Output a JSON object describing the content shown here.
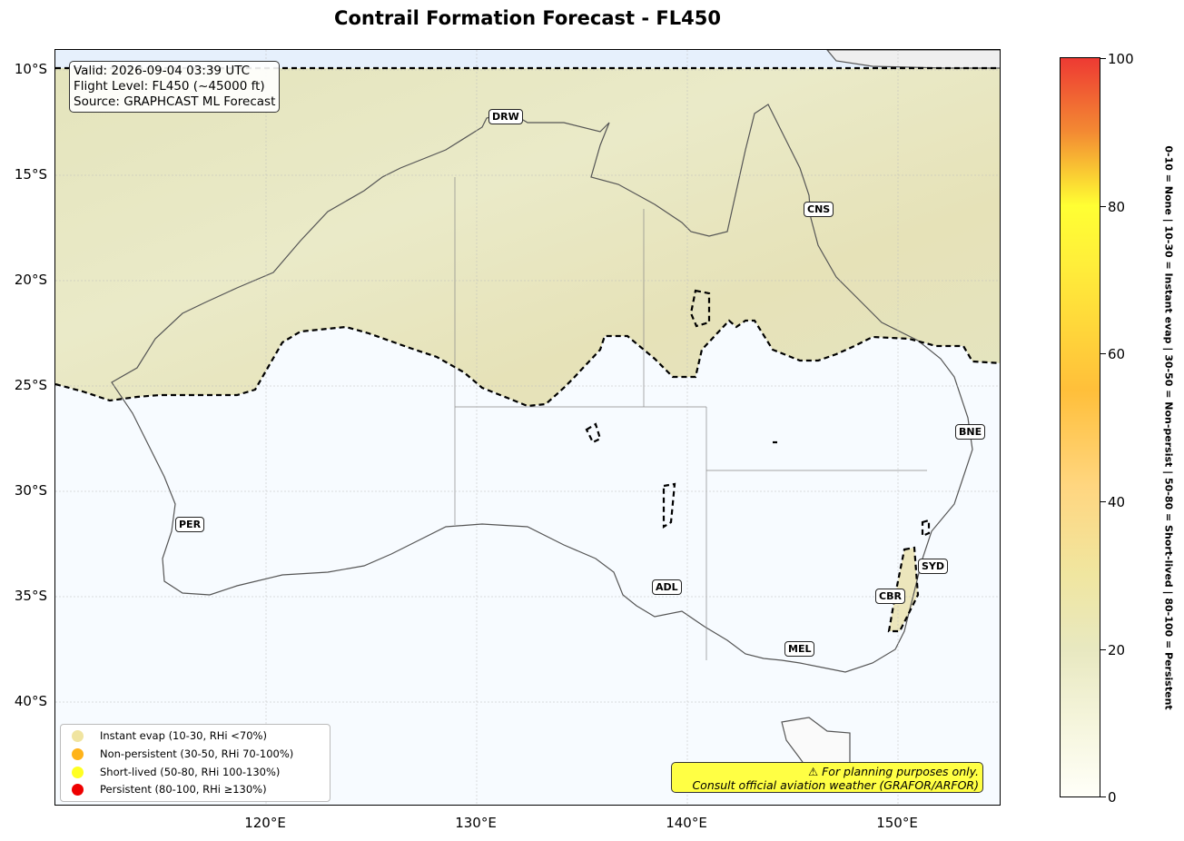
{
  "title": "Contrail Formation Forecast - FL450",
  "info": {
    "valid": "Valid: 2026-09-04 03:39 UTC",
    "flight_level": "Flight Level: FL450 (~45000 ft)",
    "source": "Source: GRAPHCAST ML Forecast"
  },
  "axes": {
    "lat_ticks": [
      "10°S",
      "15°S",
      "20°S",
      "25°S",
      "30°S",
      "35°S",
      "40°S"
    ],
    "lon_ticks": [
      "120°E",
      "130°E",
      "140°E",
      "150°E"
    ]
  },
  "airports": [
    {
      "code": "DRW"
    },
    {
      "code": "CNS"
    },
    {
      "code": "BNE"
    },
    {
      "code": "PER"
    },
    {
      "code": "SYD"
    },
    {
      "code": "ADL"
    },
    {
      "code": "CBR"
    },
    {
      "code": "MEL"
    }
  ],
  "legend": [
    {
      "label": "Instant evap (10-30, RHi <70%)",
      "color": "#f0e4a0"
    },
    {
      "label": "Non-persistent (30-50, RHi 70-100%)",
      "color": "#ffb319"
    },
    {
      "label": "Short-lived (50-80, RHi 100-130%)",
      "color": "#ffff22"
    },
    {
      "label": "Persistent (80-100, RHi ≥130%)",
      "color": "#ee0000"
    }
  ],
  "disclaimer": {
    "line1": "⚠ For planning purposes only.",
    "line2": "Consult official aviation weather (GRAFOR/ARFOR)"
  },
  "colorbar": {
    "ticks": [
      "0",
      "20",
      "40",
      "60",
      "80",
      "100"
    ],
    "side_label": "0-10 = None  |  10-30 = Instant evap  |  30-50 = Non-persist  |  50-80 = Short-lived  |  80-100 = Persistent"
  }
}
